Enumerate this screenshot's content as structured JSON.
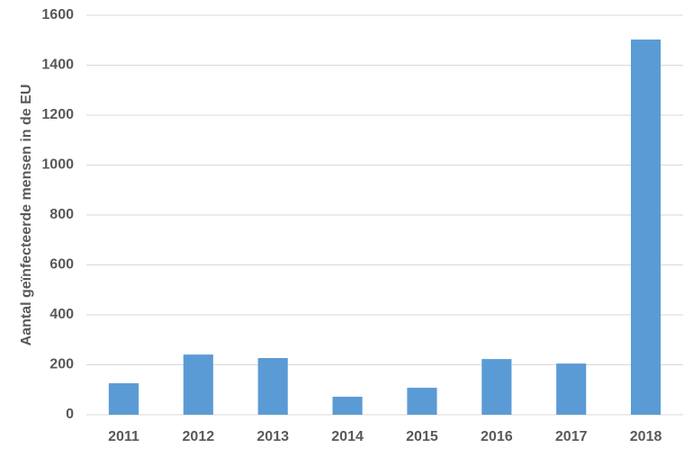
{
  "chart_data": {
    "type": "bar",
    "y_label": "Aantal geïnfecteerde mensen in de EU",
    "categories": [
      "2011",
      "2012",
      "2013",
      "2014",
      "2015",
      "2016",
      "2017",
      "2018"
    ],
    "values": [
      126,
      241,
      227,
      72,
      108,
      223,
      205,
      1503
    ],
    "color": "#5b9bd5",
    "ylim": [
      0,
      1600
    ],
    "yticks": [
      0,
      200,
      400,
      600,
      800,
      1000,
      1200,
      1400,
      1600
    ],
    "grid": true
  }
}
